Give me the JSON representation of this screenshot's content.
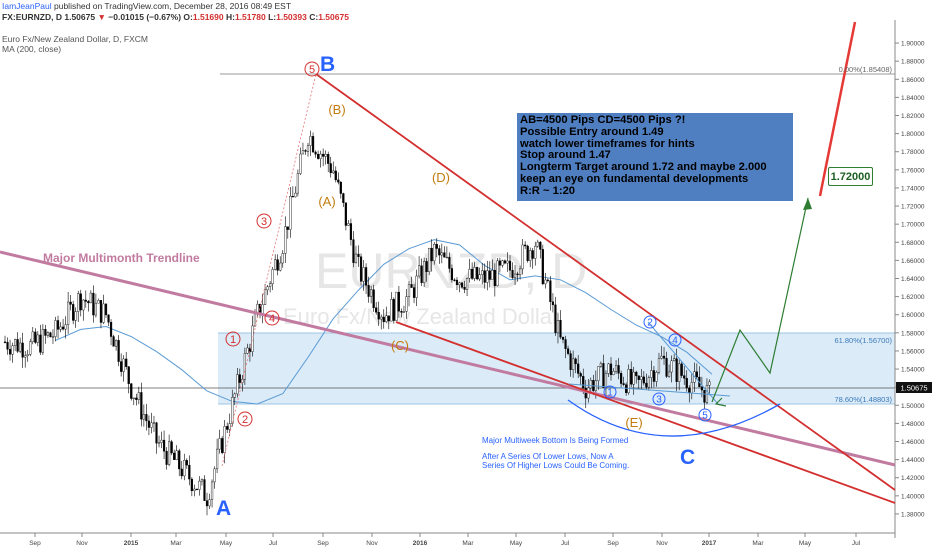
{
  "header": {
    "line1_author": "IamJeanPaul",
    "line1_rest": "published on TradingView.com, December 28, 2016 08:49 EST",
    "symbol": "FX:EURNZD, D",
    "last": "1.50675",
    "change": "−0.01015 (−0.67%)",
    "o_label": "O:",
    "o": "1.51690",
    "h_label": "H:",
    "h": "1.51780",
    "l_label": "L:",
    "l": "1.50393",
    "c_label": "C:",
    "c": "1.50675",
    "legend1": "Euro Fx/New Zealand Dollar, D, FXCM",
    "legend2": "MA (200, close)"
  },
  "watermark": {
    "symbol": "EURNZD, D",
    "name": "Euro Fx/New Zealand Dollar"
  },
  "info_box": {
    "lines": [
      "AB=4500 Pips CD=4500 Pips ?!",
      "Possible Entry around 1.49",
      "watch lower timeframes for hints",
      "Stop around 1.47",
      "Longterm Target around 1.72 and maybe 2.000",
      "keep an eye on fundamental developments",
      "R:R ~ 1:20"
    ]
  },
  "annotations": {
    "trendline_label": "Major Multimonth Trendline",
    "bottom_title": "Major Multiweek Bottom Is Being Formed",
    "bottom_text": "After A Series Of Lower Lows, Now A Series Of Higher Lows Could Be Coming.",
    "target_label": "1.72000",
    "point_A": "A",
    "point_B": "B",
    "point_C": "C",
    "wave_labels": [
      "1",
      "2",
      "3",
      "4",
      "5"
    ],
    "corrective_labels": [
      "(A)",
      "(B)",
      "(C)",
      "(D)",
      "(E)"
    ],
    "blue_wave_labels": [
      "1",
      "2",
      "3",
      "4",
      "5"
    ]
  },
  "fib": {
    "level_0": "0.00%(1.85408)",
    "level_618": "61.80%(1.56700)",
    "level_786": "78.60%(1.48803)"
  },
  "colors": {
    "up": "#26a69a",
    "candle": "#000000",
    "trend_red": "#d32f2f",
    "trend_pink": "#c27ba0",
    "ma": "#5b9bd5",
    "zone": "#cfe4f5",
    "wave_orange": "#c27c0e",
    "wave_blue": "#2962ff",
    "arrow_green": "#2e7d32"
  },
  "chart_data": {
    "type": "line",
    "title": "Euro Fx/New Zealand Dollar, D, FXCM",
    "xlabel": "",
    "ylabel": "",
    "ylim": [
      1.37,
      1.91
    ],
    "y_ticks": [
      "1.90000",
      "1.88000",
      "1.86000",
      "1.84000",
      "1.82000",
      "1.80000",
      "1.78000",
      "1.76000",
      "1.74000",
      "1.72000",
      "1.70000",
      "1.68000",
      "1.66000",
      "1.64000",
      "1.62000",
      "1.60000",
      "1.58000",
      "1.56000",
      "1.54000",
      "1.52000",
      "1.50000",
      "1.48000",
      "1.46000",
      "1.44000",
      "1.42000",
      "1.40000",
      "1.38000"
    ],
    "x_ticks": [
      "Sep",
      "Nov",
      "2015",
      "Mar",
      "May",
      "Jul",
      "Sep",
      "Nov",
      "2016",
      "Mar",
      "May",
      "Jul",
      "Sep",
      "Nov",
      "2017",
      "Mar",
      "May",
      "Jul"
    ],
    "current_price": "1.50675",
    "series": [
      {
        "name": "EURNZD",
        "x": [
          "2014-08",
          "2014-09",
          "2014-10",
          "2014-11",
          "2014-12",
          "2015-01",
          "2015-02",
          "2015-03",
          "2015-04",
          "2015-05",
          "2015-06",
          "2015-07",
          "2015-08",
          "2015-09",
          "2015-10",
          "2015-11",
          "2015-12",
          "2016-01",
          "2016-02",
          "2016-03",
          "2016-04",
          "2016-05",
          "2016-06",
          "2016-07",
          "2016-08",
          "2016-09",
          "2016-10",
          "2016-11",
          "2016-12"
        ],
        "values": [
          1.57,
          1.565,
          1.58,
          1.62,
          1.6,
          1.52,
          1.46,
          1.43,
          1.4,
          1.5,
          1.6,
          1.68,
          1.8,
          1.76,
          1.65,
          1.6,
          1.62,
          1.67,
          1.64,
          1.64,
          1.65,
          1.68,
          1.57,
          1.52,
          1.54,
          1.52,
          1.55,
          1.53,
          1.51
        ]
      }
    ]
  }
}
